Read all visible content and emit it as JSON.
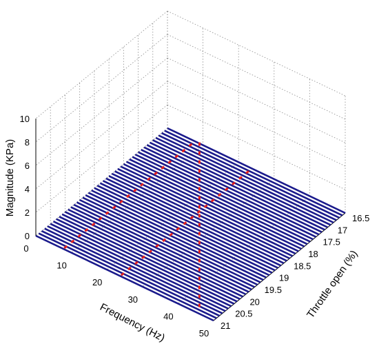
{
  "chart_data": {
    "type": "waterfall-3d",
    "title": "",
    "xlabel": "Frequency (Hz)",
    "ylabel": "Throttle open (%)",
    "zlabel": "Magnitude (KPa)",
    "x_ticks": [
      0,
      10,
      20,
      30,
      40,
      50
    ],
    "y_ticks": [
      16.5,
      17,
      17.5,
      18,
      18.5,
      19,
      19.5,
      20,
      20.5,
      21
    ],
    "z_ticks": [
      0,
      2,
      4,
      6,
      8,
      10
    ],
    "xlim": [
      0,
      50
    ],
    "ylim": [
      16.5,
      21
    ],
    "zlim": [
      0,
      10
    ],
    "grid": true,
    "series_color": "#1a1a8c",
    "trace_count": 46,
    "peak_color": "#e02020",
    "peak_tracks": [
      {
        "frequency_start": 8,
        "frequency_end": 8,
        "throttle_start": 21,
        "throttle_end": 16.5
      },
      {
        "frequency_start": 24,
        "frequency_end": 24,
        "throttle_start": 21,
        "throttle_end": 16.5
      },
      {
        "frequency_start": 9,
        "frequency_end": 46,
        "throttle_start": 16.5,
        "throttle_end": 21
      }
    ],
    "peak_magnitude": 0.1
  }
}
